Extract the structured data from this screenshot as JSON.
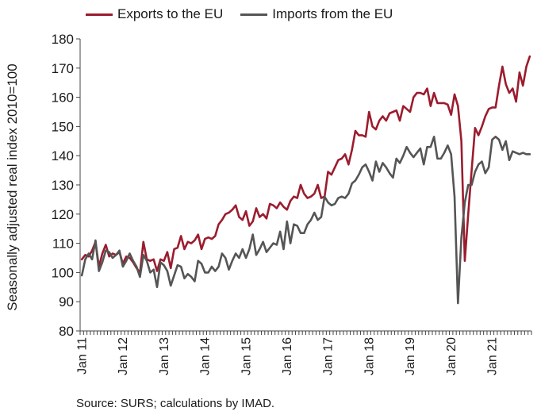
{
  "chart_data": {
    "type": "line",
    "xlabel": "",
    "ylabel": "Seasonally adjusted real index 2010=100",
    "ylim": [
      80,
      180
    ],
    "yticks": [
      80,
      90,
      100,
      110,
      120,
      130,
      140,
      150,
      160,
      170,
      180
    ],
    "xrange": [
      "Jan 11",
      "Dec 21"
    ],
    "xticks": [
      "Jan 11",
      "Jan 12",
      "Jan 13",
      "Jan 14",
      "Jan 15",
      "Jan 16",
      "Jan 17",
      "Jan 18",
      "Jan 19",
      "Jan 20",
      "Jan 21"
    ],
    "grid": false,
    "legend_position": "top",
    "source": "Source: SURS; calculations by IMAD.",
    "series": [
      {
        "name": "Exports to the EU",
        "color": "#9b1c2e",
        "values": [
          104.5,
          106.0,
          105.5,
          107.5,
          110.5,
          102.0,
          106.5,
          109.5,
          105.5,
          106.5,
          106.0,
          107.0,
          103.0,
          105.5,
          105.0,
          103.5,
          101.5,
          100.0,
          110.5,
          104.5,
          104.0,
          104.5,
          100.5,
          104.5,
          104.0,
          107.0,
          101.5,
          108.0,
          108.5,
          112.5,
          108.0,
          110.5,
          110.0,
          111.0,
          113.0,
          108.0,
          111.5,
          112.0,
          111.5,
          112.5,
          116.5,
          118.0,
          120.0,
          120.5,
          121.5,
          123.0,
          119.0,
          118.0,
          121.0,
          116.0,
          117.5,
          122.0,
          119.0,
          120.0,
          118.5,
          123.5,
          123.0,
          122.0,
          124.0,
          122.5,
          121.5,
          124.5,
          126.0,
          125.5,
          130.0,
          127.0,
          125.5,
          126.0,
          127.0,
          130.0,
          125.5,
          126.0,
          134.5,
          133.5,
          136.0,
          138.5,
          139.0,
          140.5,
          137.0,
          142.0,
          148.5,
          147.0,
          147.0,
          146.5,
          155.0,
          150.0,
          149.0,
          152.0,
          153.5,
          152.0,
          154.5,
          155.0,
          155.5,
          152.0,
          157.0,
          156.0,
          155.0,
          160.0,
          161.5,
          161.5,
          161.0,
          163.0,
          157.0,
          161.5,
          158.0,
          158.0,
          158.0,
          157.5,
          154.0,
          161.0,
          157.0,
          145.0,
          104.0,
          120.0,
          135.0,
          149.5,
          147.0,
          150.0,
          153.5,
          156.0,
          156.5,
          156.5,
          164.0,
          170.5,
          164.5,
          161.5,
          163.0,
          158.5,
          168.5,
          164.0,
          170.5,
          174.0
        ]
      },
      {
        "name": "Imports from the EU",
        "color": "#555555",
        "values": [
          99.0,
          104.5,
          106.5,
          104.5,
          111.0,
          100.5,
          103.5,
          107.5,
          107.0,
          105.0,
          106.0,
          107.5,
          102.0,
          104.0,
          106.5,
          104.0,
          102.0,
          98.5,
          106.0,
          104.0,
          100.0,
          101.0,
          95.0,
          103.5,
          102.5,
          100.5,
          95.5,
          99.0,
          102.5,
          102.0,
          98.0,
          99.5,
          98.5,
          97.0,
          104.0,
          103.0,
          100.0,
          100.0,
          102.0,
          100.5,
          102.0,
          106.5,
          105.0,
          101.0,
          104.0,
          106.5,
          105.0,
          108.0,
          105.0,
          108.0,
          113.0,
          106.0,
          108.0,
          110.5,
          107.0,
          108.5,
          110.0,
          109.5,
          114.0,
          108.0,
          117.5,
          110.0,
          116.5,
          116.0,
          113.5,
          113.5,
          116.5,
          118.0,
          120.5,
          118.0,
          119.0,
          126.0,
          124.0,
          123.0,
          123.5,
          125.5,
          126.0,
          125.5,
          127.0,
          130.5,
          131.5,
          133.5,
          136.0,
          137.0,
          134.5,
          131.5,
          138.0,
          134.5,
          137.5,
          136.0,
          134.0,
          132.5,
          139.0,
          137.5,
          140.0,
          143.0,
          141.0,
          139.5,
          141.0,
          142.5,
          137.0,
          143.0,
          143.0,
          146.5,
          139.0,
          139.0,
          141.0,
          143.5,
          140.5,
          126.0,
          89.5,
          112.0,
          124.0,
          130.0,
          130.0,
          134.5,
          137.0,
          138.0,
          134.0,
          136.0,
          145.5,
          146.5,
          145.5,
          142.0,
          145.0,
          138.5,
          141.5,
          141.0,
          140.5,
          141.0,
          140.5,
          140.5
        ]
      }
    ]
  }
}
